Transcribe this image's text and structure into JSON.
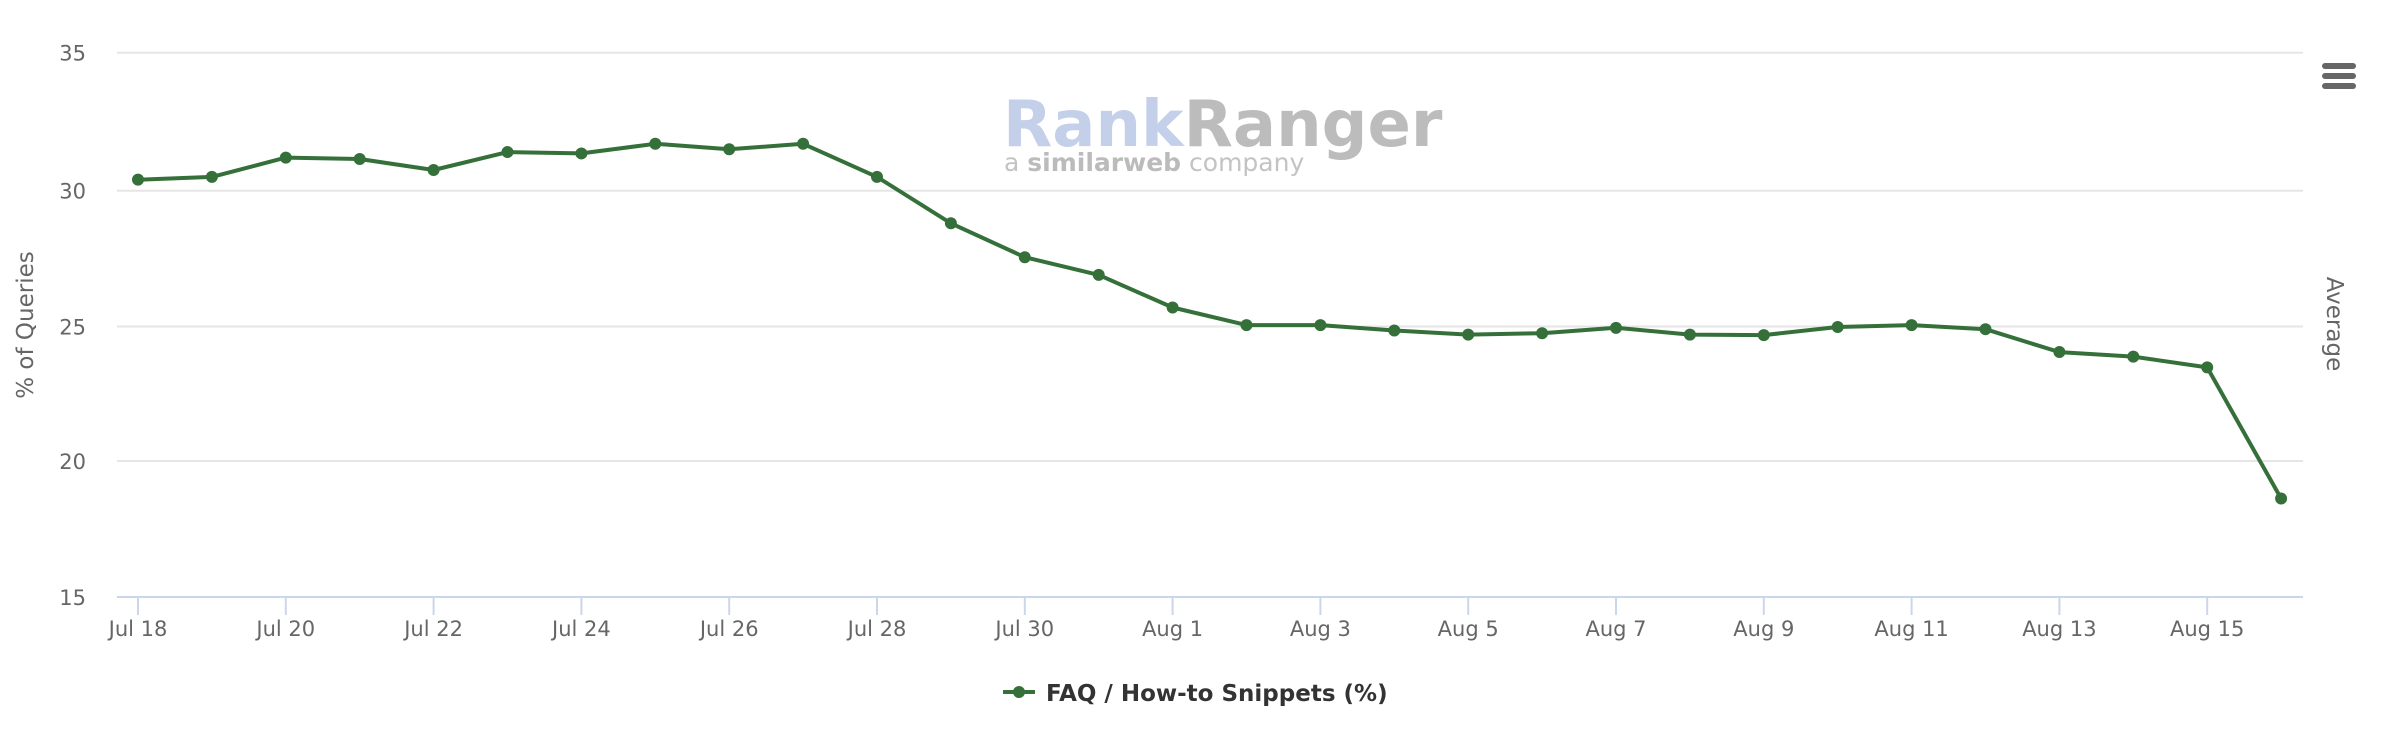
{
  "watermark": {
    "brand_part1": "Rank",
    "brand_part2": "Ranger",
    "tagline_prefix": "a ",
    "tagline_bold": "similarweb",
    "tagline_suffix": " company"
  },
  "menu": {
    "icon": "hamburger-menu-icon"
  },
  "colors": {
    "series": "#35703a",
    "grid": "#e6e6e6",
    "axis": "#ccd6eb",
    "label": "#666666",
    "legend_text": "#333333"
  },
  "chart_data": {
    "type": "line",
    "title": "",
    "xlabel": "",
    "ylabel": "% of Queries",
    "right_axis_label": "Average",
    "ylim": [
      15,
      35
    ],
    "yticks": [
      15,
      20,
      25,
      30,
      35
    ],
    "grid": true,
    "legend_position": "bottom-center",
    "x": [
      "Jul 18",
      "Jul 19",
      "Jul 20",
      "Jul 21",
      "Jul 22",
      "Jul 23",
      "Jul 24",
      "Jul 25",
      "Jul 26",
      "Jul 27",
      "Jul 28",
      "Jul 29",
      "Jul 30",
      "Jul 31",
      "Aug 1",
      "Aug 2",
      "Aug 3",
      "Aug 4",
      "Aug 5",
      "Aug 6",
      "Aug 7",
      "Aug 8",
      "Aug 9",
      "Aug 10",
      "Aug 11",
      "Aug 12",
      "Aug 13",
      "Aug 14",
      "Aug 15",
      "Aug 16"
    ],
    "xtick_labels": [
      "Jul 18",
      "Jul 20",
      "Jul 22",
      "Jul 24",
      "Jul 26",
      "Jul 28",
      "Jul 30",
      "Aug 1",
      "Aug 3",
      "Aug 5",
      "Aug 7",
      "Aug 9",
      "Aug 11",
      "Aug 13",
      "Aug 15"
    ],
    "series": [
      {
        "name": "FAQ / How-to Snippets (%)",
        "color": "#35703a",
        "values": [
          30.4,
          30.5,
          31.2,
          31.15,
          30.75,
          31.4,
          31.35,
          31.7,
          31.5,
          31.7,
          30.5,
          28.8,
          27.55,
          26.9,
          25.7,
          25.05,
          25.05,
          24.85,
          24.7,
          24.75,
          24.95,
          24.7,
          24.68,
          24.98,
          25.05,
          24.9,
          24.05,
          23.88,
          23.48,
          18.62
        ]
      }
    ]
  }
}
